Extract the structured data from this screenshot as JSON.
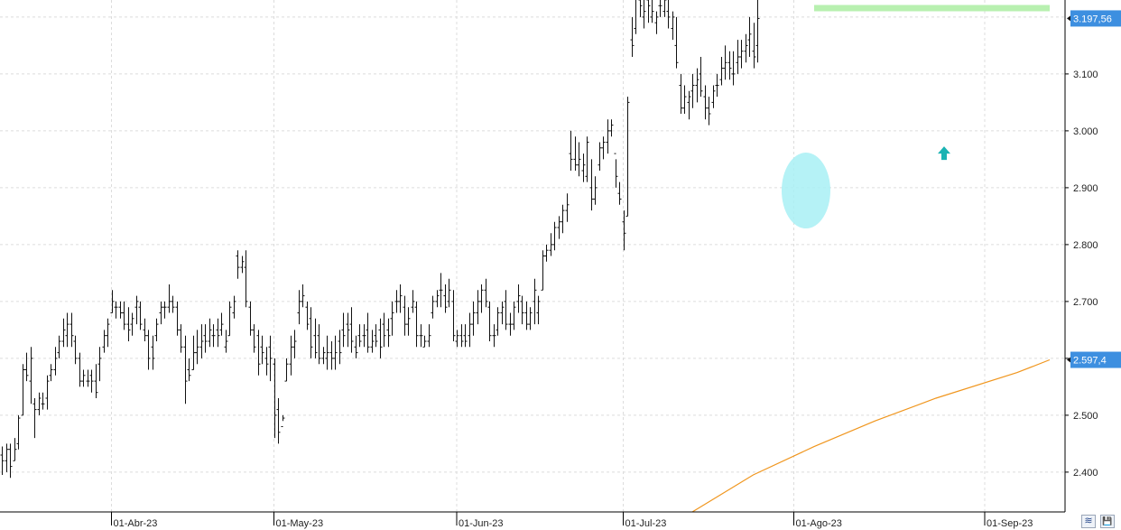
{
  "chart_data": {
    "type": "ohlc",
    "ylim": [
      2330,
      3230
    ],
    "y_ticks": [
      2400,
      2500,
      2600,
      2700,
      2800,
      2900,
      3000,
      3100
    ],
    "y_tick_labels": [
      "2.400",
      "2.500",
      "2.600",
      "2.700",
      "2.800",
      "2.900",
      "3.000",
      "3.100"
    ],
    "x_labels": [
      {
        "index": 27,
        "label": "01-Abr-23"
      },
      {
        "index": 67,
        "label": "01-May-23"
      },
      {
        "index": 112,
        "label": "01-Jun-23"
      },
      {
        "index": 153,
        "label": "01-Jul-23"
      },
      {
        "index": 195,
        "label": "01-Ago-23"
      },
      {
        "index": 242,
        "label": "01-Sep-23"
      }
    ],
    "last_price": {
      "value": 3197.56,
      "label": "3.197,56"
    },
    "moving_average": {
      "label": "2.597,4",
      "value": 2597.4,
      "color": "#f0961e",
      "points": [
        [
          170,
          2330
        ],
        [
          185,
          2395
        ],
        [
          200,
          2445
        ],
        [
          215,
          2490
        ],
        [
          230,
          2530
        ],
        [
          250,
          2575
        ],
        [
          258,
          2597.4
        ]
      ]
    },
    "resistance_line": {
      "value": 3250,
      "from_index": 200,
      "to_index": 258,
      "color": "#b8f0b0"
    },
    "highlight": {
      "center_index": 198,
      "center_value": 2895,
      "color": "#a8f0f4"
    },
    "up_arrow": {
      "index": 232,
      "value": 2960,
      "color": "#1ab3b3"
    },
    "close_ticks_color": "#111111",
    "bars": [
      [
        2430,
        2445,
        2395,
        2420
      ],
      [
        2420,
        2450,
        2400,
        2440
      ],
      [
        2440,
        2450,
        2390,
        2410
      ],
      [
        2420,
        2460,
        2420,
        2440
      ],
      [
        2450,
        2500,
        2440,
        2495
      ],
      [
        2500,
        2590,
        2500,
        2580
      ],
      [
        2580,
        2610,
        2560,
        2570
      ],
      [
        2560,
        2620,
        2520,
        2600
      ],
      [
        2520,
        2530,
        2460,
        2510
      ],
      [
        2510,
        2540,
        2500,
        2530
      ],
      [
        2520,
        2540,
        2510,
        2520
      ],
      [
        2530,
        2570,
        2510,
        2560
      ],
      [
        2570,
        2590,
        2560,
        2580
      ],
      [
        2580,
        2620,
        2570,
        2600
      ],
      [
        2610,
        2640,
        2600,
        2630
      ],
      [
        2630,
        2670,
        2620,
        2650
      ],
      [
        2640,
        2680,
        2620,
        2660
      ],
      [
        2660,
        2680,
        2620,
        2640
      ],
      [
        2630,
        2640,
        2590,
        2600
      ],
      [
        2600,
        2610,
        2550,
        2560
      ],
      [
        2560,
        2580,
        2550,
        2570
      ],
      [
        2560,
        2580,
        2550,
        2560
      ],
      [
        2570,
        2580,
        2540,
        2560
      ],
      [
        2560,
        2590,
        2530,
        2540
      ],
      [
        2590,
        2620,
        2560,
        2600
      ],
      [
        2620,
        2650,
        2610,
        2640
      ],
      [
        2640,
        2670,
        2620,
        2660
      ],
      [
        2680,
        2720,
        2680,
        2700
      ],
      [
        2690,
        2700,
        2670,
        2690
      ],
      [
        2690,
        2700,
        2670,
        2680
      ],
      [
        2680,
        2700,
        2650,
        2660
      ],
      [
        2660,
        2690,
        2630,
        2650
      ],
      [
        2660,
        2680,
        2640,
        2670
      ],
      [
        2690,
        2710,
        2660,
        2700
      ],
      [
        2690,
        2700,
        2650,
        2660
      ],
      [
        2650,
        2670,
        2630,
        2640
      ],
      [
        2640,
        2650,
        2580,
        2600
      ],
      [
        2620,
        2640,
        2580,
        2600
      ],
      [
        2640,
        2670,
        2630,
        2660
      ],
      [
        2680,
        2700,
        2660,
        2690
      ],
      [
        2690,
        2700,
        2670,
        2690
      ],
      [
        2690,
        2730,
        2680,
        2700
      ],
      [
        2700,
        2710,
        2680,
        2690
      ],
      [
        2690,
        2700,
        2640,
        2650
      ],
      [
        2650,
        2660,
        2610,
        2620
      ],
      [
        2620,
        2640,
        2520,
        2560
      ],
      [
        2580,
        2600,
        2560,
        2570
      ],
      [
        2580,
        2640,
        2580,
        2610
      ],
      [
        2610,
        2650,
        2590,
        2620
      ],
      [
        2620,
        2660,
        2600,
        2630
      ],
      [
        2640,
        2660,
        2610,
        2630
      ],
      [
        2630,
        2670,
        2620,
        2650
      ],
      [
        2640,
        2660,
        2620,
        2640
      ],
      [
        2650,
        2670,
        2620,
        2640
      ],
      [
        2650,
        2680,
        2640,
        2660
      ],
      [
        2620,
        2650,
        2610,
        2630
      ],
      [
        2640,
        2700,
        2640,
        2690
      ],
      [
        2680,
        2710,
        2670,
        2700
      ],
      [
        2780,
        2790,
        2740,
        2760
      ],
      [
        2760,
        2780,
        2750,
        2770
      ],
      [
        2760,
        2790,
        2690,
        2700
      ],
      [
        2690,
        2700,
        2640,
        2650
      ],
      [
        2650,
        2660,
        2610,
        2620
      ],
      [
        2640,
        2650,
        2570,
        2590
      ],
      [
        2620,
        2640,
        2590,
        2610
      ],
      [
        2600,
        2620,
        2570,
        2590
      ],
      [
        2620,
        2640,
        2560,
        2600
      ],
      [
        2590,
        2600,
        2460,
        2500
      ],
      [
        2510,
        2530,
        2450,
        2470
      ],
      [
        2480,
        2500,
        2490,
        2495
      ],
      [
        2560,
        2600,
        2560,
        2590
      ],
      [
        2590,
        2640,
        2570,
        2620
      ],
      [
        2620,
        2650,
        2600,
        2630
      ],
      [
        2680,
        2720,
        2660,
        2700
      ],
      [
        2700,
        2730,
        2690,
        2710
      ],
      [
        2690,
        2700,
        2650,
        2660
      ],
      [
        2670,
        2690,
        2600,
        2620
      ],
      [
        2640,
        2670,
        2600,
        2610
      ],
      [
        2640,
        2660,
        2590,
        2600
      ],
      [
        2600,
        2620,
        2590,
        2610
      ],
      [
        2600,
        2640,
        2580,
        2610
      ],
      [
        2610,
        2630,
        2580,
        2600
      ],
      [
        2600,
        2640,
        2580,
        2610
      ],
      [
        2630,
        2650,
        2590,
        2610
      ],
      [
        2650,
        2680,
        2620,
        2640
      ],
      [
        2660,
        2680,
        2620,
        2650
      ],
      [
        2660,
        2690,
        2610,
        2630
      ],
      [
        2620,
        2640,
        2600,
        2610
      ],
      [
        2640,
        2660,
        2620,
        2630
      ],
      [
        2640,
        2660,
        2620,
        2640
      ],
      [
        2650,
        2680,
        2610,
        2620
      ],
      [
        2620,
        2650,
        2610,
        2630
      ],
      [
        2640,
        2660,
        2620,
        2630
      ],
      [
        2650,
        2670,
        2600,
        2620
      ],
      [
        2660,
        2680,
        2620,
        2640
      ],
      [
        2650,
        2670,
        2620,
        2640
      ],
      [
        2670,
        2700,
        2640,
        2680
      ],
      [
        2700,
        2720,
        2680,
        2700
      ],
      [
        2700,
        2730,
        2680,
        2710
      ],
      [
        2690,
        2710,
        2640,
        2660
      ],
      [
        2660,
        2690,
        2640,
        2670
      ],
      [
        2690,
        2720,
        2680,
        2700
      ],
      [
        2690,
        2700,
        2620,
        2640
      ],
      [
        2640,
        2660,
        2620,
        2640
      ],
      [
        2620,
        2640,
        2620,
        2630
      ],
      [
        2630,
        2660,
        2620,
        2640
      ],
      [
        2680,
        2710,
        2670,
        2700
      ],
      [
        2700,
        2720,
        2690,
        2710
      ],
      [
        2720,
        2750,
        2690,
        2720
      ],
      [
        2710,
        2730,
        2680,
        2690
      ],
      [
        2700,
        2740,
        2690,
        2720
      ],
      [
        2700,
        2720,
        2630,
        2640
      ],
      [
        2630,
        2650,
        2620,
        2640
      ],
      [
        2640,
        2660,
        2620,
        2630
      ],
      [
        2640,
        2660,
        2620,
        2630
      ],
      [
        2640,
        2680,
        2620,
        2660
      ],
      [
        2660,
        2700,
        2640,
        2680
      ],
      [
        2680,
        2720,
        2660,
        2700
      ],
      [
        2700,
        2730,
        2680,
        2720
      ],
      [
        2720,
        2740,
        2690,
        2700
      ],
      [
        2690,
        2700,
        2630,
        2640
      ],
      [
        2640,
        2660,
        2620,
        2640
      ],
      [
        2650,
        2690,
        2640,
        2680
      ],
      [
        2680,
        2700,
        2660,
        2690
      ],
      [
        2700,
        2720,
        2650,
        2660
      ],
      [
        2660,
        2680,
        2640,
        2660
      ],
      [
        2660,
        2700,
        2650,
        2690
      ],
      [
        2700,
        2730,
        2680,
        2710
      ],
      [
        2700,
        2710,
        2660,
        2680
      ],
      [
        2680,
        2700,
        2650,
        2660
      ],
      [
        2660,
        2690,
        2650,
        2680
      ],
      [
        2700,
        2740,
        2660,
        2720
      ],
      [
        2680,
        2710,
        2660,
        2700
      ],
      [
        2720,
        2790,
        2720,
        2780
      ],
      [
        2780,
        2800,
        2770,
        2790
      ],
      [
        2790,
        2820,
        2780,
        2800
      ],
      [
        2800,
        2840,
        2790,
        2830
      ],
      [
        2830,
        2850,
        2810,
        2840
      ],
      [
        2840,
        2870,
        2820,
        2860
      ],
      [
        2860,
        2890,
        2840,
        2870
      ],
      [
        2960,
        3000,
        2930,
        2950
      ],
      [
        2950,
        2990,
        2930,
        2940
      ],
      [
        2940,
        2980,
        2920,
        2950
      ],
      [
        2930,
        2960,
        2910,
        2940
      ],
      [
        2920,
        2990,
        2910,
        2980
      ],
      [
        2900,
        2950,
        2860,
        2880
      ],
      [
        2880,
        2920,
        2870,
        2900
      ],
      [
        2940,
        2980,
        2930,
        2970
      ],
      [
        2970,
        2990,
        2950,
        2980
      ],
      [
        2980,
        3020,
        2960,
        3000
      ],
      [
        3000,
        3020,
        2990,
        3010
      ],
      [
        2960,
        2950,
        2900,
        2920
      ],
      [
        2890,
        2910,
        2870,
        2880
      ],
      [
        2840,
        2860,
        2790,
        2820
      ],
      [
        2850,
        3060,
        2850,
        3050
      ],
      [
        3160,
        3200,
        3130,
        3150
      ],
      [
        3180,
        3250,
        3170,
        3240
      ],
      [
        3230,
        3250,
        3200,
        3220
      ],
      [
        3200,
        3240,
        3180,
        3210
      ],
      [
        3230,
        3250,
        3190,
        3220
      ],
      [
        3200,
        3230,
        3190,
        3210
      ],
      [
        3190,
        3210,
        3170,
        3200
      ],
      [
        3220,
        3240,
        3200,
        3220
      ],
      [
        3210,
        3240,
        3200,
        3230
      ],
      [
        3210,
        3230,
        3180,
        3200
      ],
      [
        3180,
        3210,
        3160,
        3200
      ],
      [
        3150,
        3200,
        3110,
        3120
      ],
      [
        3080,
        3100,
        3030,
        3040
      ],
      [
        3040,
        3080,
        3030,
        3060
      ],
      [
        3050,
        3070,
        3020,
        3060
      ],
      [
        3070,
        3100,
        3040,
        3080
      ],
      [
        3080,
        3110,
        3050,
        3090
      ],
      [
        3100,
        3130,
        3060,
        3070
      ],
      [
        3060,
        3080,
        3020,
        3040
      ],
      [
        3040,
        3060,
        3010,
        3030
      ],
      [
        3050,
        3080,
        3040,
        3070
      ],
      [
        3080,
        3100,
        3060,
        3080
      ],
      [
        3090,
        3130,
        3080,
        3110
      ],
      [
        3110,
        3150,
        3090,
        3120
      ],
      [
        3120,
        3140,
        3090,
        3110
      ],
      [
        3100,
        3140,
        3080,
        3100
      ],
      [
        3120,
        3160,
        3100,
        3130
      ],
      [
        3130,
        3160,
        3110,
        3140
      ],
      [
        3140,
        3170,
        3120,
        3150
      ],
      [
        3160,
        3200,
        3130,
        3170
      ],
      [
        3140,
        3190,
        3110,
        3130
      ],
      [
        3150,
        3230,
        3120,
        3197.56
      ]
    ]
  },
  "ui": {
    "button_1": "≋",
    "button_2": "💾"
  }
}
